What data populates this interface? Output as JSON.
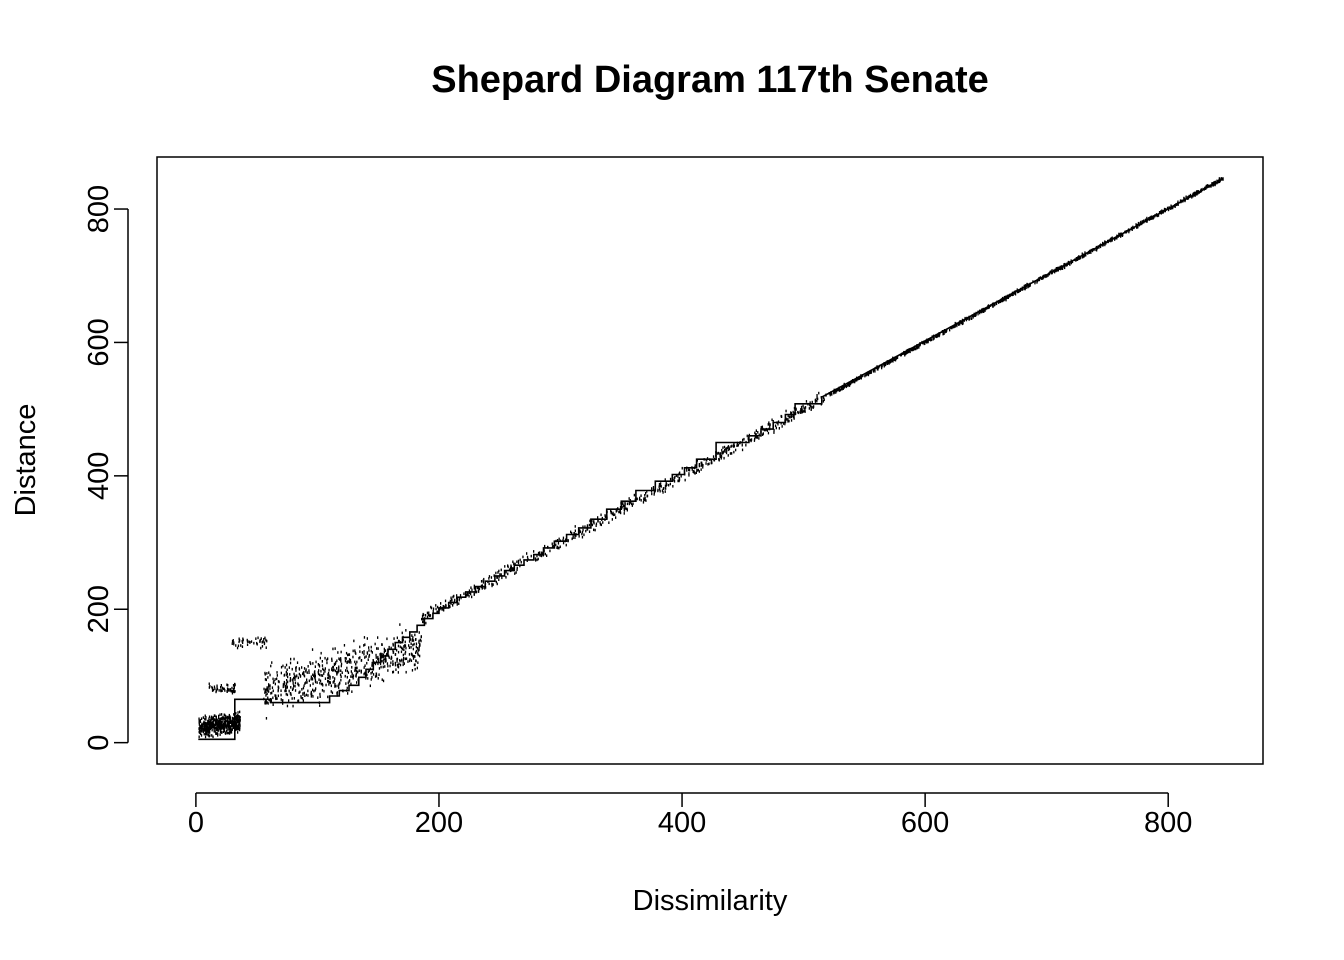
{
  "chart_data": {
    "type": "scatter",
    "title": "Shepard Diagram 117th Senate",
    "xlabel": "Dissimilarity",
    "ylabel": "Distance",
    "xlim": [
      -32,
      878
    ],
    "ylim": [
      -32,
      878
    ],
    "x_ticks": [
      0,
      200,
      400,
      600,
      800
    ],
    "y_ticks": [
      0,
      200,
      400,
      600,
      800
    ],
    "x_tick_labels": [
      "0",
      "200",
      "400",
      "600",
      "800"
    ],
    "y_tick_labels": [
      "0",
      "200",
      "400",
      "600",
      "800"
    ],
    "grid": false,
    "legend": "none",
    "series": [
      {
        "kind": "points",
        "clusters": [
          {
            "x_range": [
              2,
              36
            ],
            "y_center": 22,
            "y_spread": 20,
            "slope": 0.35,
            "count": 500
          },
          {
            "x_range": [
              10,
              32
            ],
            "y_center": 80,
            "y_spread": 10,
            "slope": 0,
            "count": 50
          },
          {
            "x_range": [
              28,
              58
            ],
            "y_center": 150,
            "y_spread": 12,
            "slope": 0,
            "count": 45
          },
          {
            "x_range": [
              55,
              185
            ],
            "y_center": 75,
            "y_spread": 48,
            "slope": 0.85,
            "count": 650
          },
          {
            "x_range": [
              185,
              520
            ],
            "y_center": 0,
            "y_spread": 14,
            "slope": 1.0,
            "count": 650
          },
          {
            "x_range": [
              520,
              845
            ],
            "y_center": 0,
            "y_spread": 4,
            "slope": 1.0,
            "count": 950
          }
        ]
      },
      {
        "kind": "step",
        "x": [
          2,
          32,
          32,
          62,
          62,
          110,
          110,
          118,
          118,
          126,
          126,
          134,
          134,
          140,
          140,
          146,
          146,
          152,
          152,
          158,
          158,
          164,
          164,
          170,
          170,
          176,
          176,
          182,
          182,
          188,
          188,
          195,
          195,
          200,
          200,
          208,
          208,
          215,
          215,
          222,
          222,
          230,
          230,
          238,
          238,
          246,
          246,
          254,
          254,
          262,
          262,
          270,
          270,
          278,
          278,
          286,
          286,
          295,
          295,
          305,
          305,
          315,
          315,
          325,
          325,
          338,
          338,
          350,
          350,
          362,
          362,
          378,
          378,
          392,
          392,
          402,
          402,
          412,
          412,
          428,
          428,
          448,
          448,
          455,
          455,
          465,
          465,
          475,
          475,
          485,
          485,
          493,
          493,
          515,
          515,
          845
        ],
        "y": [
          5,
          5,
          65,
          65,
          60,
          60,
          70,
          70,
          78,
          78,
          86,
          86,
          98,
          98,
          110,
          110,
          120,
          120,
          130,
          130,
          140,
          140,
          150,
          150,
          158,
          158,
          166,
          166,
          176,
          176,
          186,
          186,
          194,
          194,
          202,
          202,
          210,
          210,
          218,
          218,
          226,
          226,
          234,
          234,
          242,
          242,
          250,
          250,
          258,
          258,
          266,
          266,
          274,
          274,
          282,
          282,
          292,
          292,
          302,
          302,
          312,
          312,
          322,
          322,
          335,
          335,
          350,
          350,
          362,
          362,
          378,
          378,
          392,
          392,
          402,
          402,
          412,
          412,
          425,
          425,
          450,
          450,
          450,
          450,
          460,
          460,
          470,
          470,
          480,
          480,
          492,
          492,
          508,
          508,
          518,
          845
        ]
      }
    ]
  }
}
